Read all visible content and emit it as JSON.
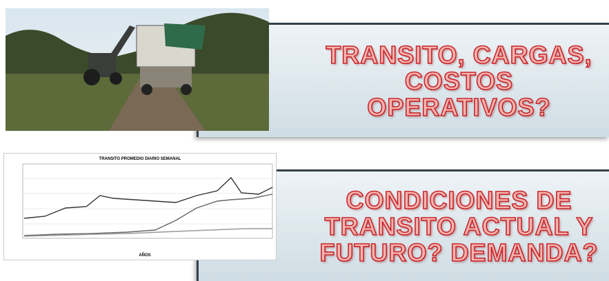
{
  "panels": [
    {
      "lines": [
        "TRANSITO, CARGAS,",
        "COSTOS",
        "OPERATIVOS?"
      ]
    },
    {
      "lines": [
        "CONDICIONES DE",
        "TRANSITO ACTUAL Y",
        "FUTURO? DEMANDA?"
      ]
    }
  ],
  "chart_image": {
    "title": "TRANSITO PROMEDIO DIARIO SEMANAL",
    "x_axis_label": "AÑOS"
  }
}
